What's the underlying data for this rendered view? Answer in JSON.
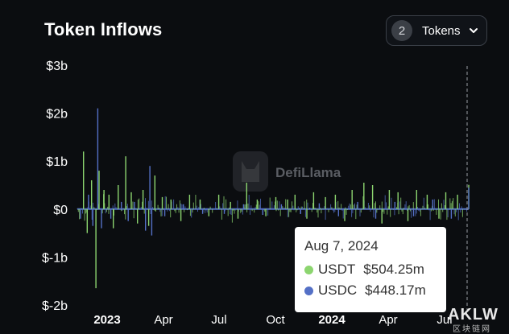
{
  "header": {
    "title": "Token Inflows",
    "token_count": "2",
    "token_label": "Tokens"
  },
  "watermark": {
    "text": "DefiLlama",
    "corner_text": "AKLW",
    "corner_sub": "区块链网"
  },
  "tooltip": {
    "date": "Aug 7, 2024",
    "rows": [
      {
        "name": "USDT",
        "value": "$504.25m",
        "color": "#8cd56f"
      },
      {
        "name": "USDC",
        "value": "$448.17m",
        "color": "#5470c6"
      }
    ]
  },
  "chart_data": {
    "type": "bar",
    "title": "Token Inflows",
    "x_tick_labels": [
      "2023",
      "Apr",
      "Jul",
      "Oct",
      "2024",
      "Apr",
      "Jul"
    ],
    "x_tick_bold": [
      true,
      false,
      false,
      false,
      true,
      false,
      false
    ],
    "y_tick_labels": [
      "$3b",
      "$2b",
      "$1b",
      "$0",
      "$-1b",
      "$-2b"
    ],
    "ylim": [
      -2000000000,
      3000000000
    ],
    "x_range": [
      "2022-11-15",
      "2024-08-07"
    ],
    "grid": false,
    "series": [
      {
        "name": "USDT",
        "color": "#8cd56f",
        "points": [
          [
            "2022-11-25",
            1200000000
          ],
          [
            "2022-12-01",
            -500000000
          ],
          [
            "2022-12-08",
            600000000
          ],
          [
            "2022-12-15",
            -1650000000
          ],
          [
            "2022-12-20",
            800000000
          ],
          [
            "2022-12-28",
            400000000
          ],
          [
            "2023-01-05",
            300000000
          ],
          [
            "2023-01-12",
            -400000000
          ],
          [
            "2023-01-20",
            500000000
          ],
          [
            "2023-02-01",
            1100000000
          ],
          [
            "2023-02-10",
            350000000
          ],
          [
            "2023-02-20",
            -300000000
          ],
          [
            "2023-03-01",
            400000000
          ],
          [
            "2023-03-10",
            -350000000
          ],
          [
            "2023-03-20",
            700000000
          ],
          [
            "2023-04-01",
            250000000
          ],
          [
            "2023-04-15",
            200000000
          ],
          [
            "2023-05-01",
            -250000000
          ],
          [
            "2023-05-15",
            300000000
          ],
          [
            "2023-06-01",
            200000000
          ],
          [
            "2023-06-15",
            -150000000
          ],
          [
            "2023-07-01",
            300000000
          ],
          [
            "2023-07-20",
            150000000
          ],
          [
            "2023-08-01",
            -200000000
          ],
          [
            "2023-08-15",
            550000000
          ],
          [
            "2023-09-01",
            200000000
          ],
          [
            "2023-09-15",
            -150000000
          ],
          [
            "2023-10-01",
            250000000
          ],
          [
            "2023-10-20",
            200000000
          ],
          [
            "2023-11-01",
            300000000
          ],
          [
            "2023-11-20",
            -200000000
          ],
          [
            "2023-12-01",
            350000000
          ],
          [
            "2023-12-20",
            250000000
          ],
          [
            "2024-01-05",
            300000000
          ],
          [
            "2024-01-20",
            -250000000
          ],
          [
            "2024-02-01",
            400000000
          ],
          [
            "2024-02-20",
            550000000
          ],
          [
            "2024-03-05",
            500000000
          ],
          [
            "2024-03-20",
            -300000000
          ],
          [
            "2024-04-01",
            400000000
          ],
          [
            "2024-04-15",
            350000000
          ],
          [
            "2024-05-01",
            -250000000
          ],
          [
            "2024-05-15",
            400000000
          ],
          [
            "2024-06-01",
            300000000
          ],
          [
            "2024-06-20",
            -200000000
          ],
          [
            "2024-07-01",
            350000000
          ],
          [
            "2024-07-20",
            300000000
          ],
          [
            "2024-08-07",
            504250000
          ]
        ]
      },
      {
        "name": "USDC",
        "color": "#5470c6",
        "points": [
          [
            "2022-11-20",
            -200000000
          ],
          [
            "2022-12-03",
            300000000
          ],
          [
            "2022-12-10",
            -350000000
          ],
          [
            "2022-12-18",
            2100000000
          ],
          [
            "2022-12-24",
            -400000000
          ],
          [
            "2023-01-08",
            -200000000
          ],
          [
            "2023-01-25",
            150000000
          ],
          [
            "2023-02-05",
            -250000000
          ],
          [
            "2023-02-15",
            150000000
          ],
          [
            "2023-03-05",
            -450000000
          ],
          [
            "2023-03-12",
            900000000
          ],
          [
            "2023-03-15",
            -550000000
          ],
          [
            "2023-04-05",
            -150000000
          ],
          [
            "2023-05-05",
            100000000
          ],
          [
            "2023-06-05",
            -100000000
          ],
          [
            "2023-07-10",
            -100000000
          ],
          [
            "2023-08-10",
            100000000
          ],
          [
            "2023-09-10",
            -120000000
          ],
          [
            "2023-10-10",
            100000000
          ],
          [
            "2023-11-10",
            -100000000
          ],
          [
            "2023-12-10",
            120000000
          ],
          [
            "2024-01-10",
            -150000000
          ],
          [
            "2024-02-10",
            150000000
          ],
          [
            "2024-03-10",
            -200000000
          ],
          [
            "2024-04-10",
            150000000
          ],
          [
            "2024-05-10",
            -150000000
          ],
          [
            "2024-06-10",
            200000000
          ],
          [
            "2024-07-10",
            -200000000
          ],
          [
            "2024-08-07",
            448170000
          ]
        ]
      }
    ],
    "tooltip_date": "2024-08-07"
  }
}
